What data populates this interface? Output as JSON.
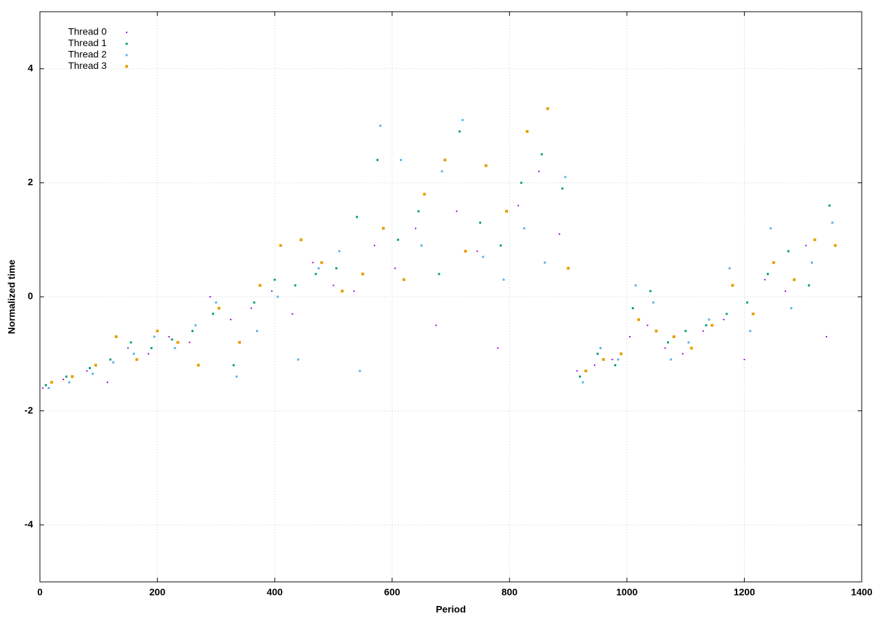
{
  "chart_data": {
    "type": "scatter",
    "x_label": "Period",
    "y_label": "Normalized time",
    "xlim": [
      0,
      1400
    ],
    "ylim": [
      -5,
      5
    ],
    "xticks": [
      0,
      200,
      400,
      600,
      800,
      1000,
      1200,
      1400
    ],
    "yticks": [
      -4,
      -2,
      0,
      2,
      4
    ],
    "grid": true,
    "legend": "upper-left",
    "series": [
      {
        "name": "Thread 0",
        "color": "#9400d3",
        "x": [
          5,
          40,
          80,
          115,
          150,
          185,
          220,
          255,
          290,
          325,
          360,
          395,
          430,
          465,
          500,
          535,
          570,
          605,
          640,
          675,
          710,
          745,
          780,
          815,
          850,
          885,
          915,
          945,
          975,
          1005,
          1035,
          1065,
          1095,
          1130,
          1165,
          1200,
          1235,
          1270,
          1305,
          1340
        ],
        "values": [
          -1.6,
          -1.45,
          -1.3,
          -1.5,
          -0.9,
          -1.0,
          -0.7,
          -0.8,
          0.0,
          -0.4,
          -0.2,
          0.1,
          -0.3,
          0.6,
          0.2,
          0.1,
          0.9,
          0.5,
          1.2,
          -0.5,
          1.5,
          0.8,
          -0.9,
          1.6,
          2.2,
          1.1,
          -1.3,
          -1.2,
          -1.1,
          -0.7,
          -0.5,
          -0.9,
          -1.0,
          -0.6,
          -0.4,
          -1.1,
          0.3,
          0.1,
          0.9,
          -0.7
        ]
      },
      {
        "name": "Thread 1",
        "color": "#009e73",
        "x": [
          10,
          45,
          85,
          120,
          155,
          190,
          225,
          260,
          295,
          330,
          365,
          400,
          435,
          470,
          505,
          540,
          575,
          610,
          645,
          680,
          715,
          750,
          785,
          820,
          855,
          890,
          920,
          950,
          980,
          1010,
          1040,
          1070,
          1100,
          1135,
          1170,
          1205,
          1240,
          1275,
          1310,
          1345
        ],
        "values": [
          -1.55,
          -1.4,
          -1.25,
          -1.1,
          -0.8,
          -0.9,
          -0.75,
          -0.6,
          -0.3,
          -1.2,
          -0.1,
          0.3,
          0.2,
          0.4,
          0.5,
          1.4,
          2.4,
          1.0,
          1.5,
          0.4,
          2.9,
          1.3,
          0.9,
          2.0,
          2.5,
          1.9,
          -1.4,
          -1.0,
          -1.2,
          -0.2,
          0.1,
          -0.8,
          -0.6,
          -0.5,
          -0.3,
          -0.1,
          0.4,
          0.8,
          0.2,
          1.6
        ]
      },
      {
        "name": "Thread 2",
        "color": "#56b4e9",
        "x": [
          15,
          50,
          90,
          125,
          160,
          195,
          230,
          265,
          300,
          335,
          370,
          405,
          440,
          475,
          510,
          545,
          580,
          615,
          650,
          685,
          720,
          755,
          790,
          825,
          860,
          895,
          925,
          955,
          985,
          1015,
          1045,
          1075,
          1105,
          1140,
          1175,
          1210,
          1245,
          1280,
          1315,
          1350
        ],
        "values": [
          -1.6,
          -1.5,
          -1.35,
          -1.15,
          -1.0,
          -0.7,
          -0.9,
          -0.5,
          -0.1,
          -1.4,
          -0.6,
          0.0,
          -1.1,
          0.5,
          0.8,
          -1.3,
          3.0,
          2.4,
          0.9,
          2.2,
          3.1,
          0.7,
          0.3,
          1.2,
          0.6,
          2.1,
          -1.5,
          -0.9,
          -1.1,
          0.2,
          -0.1,
          -1.1,
          -0.8,
          -0.4,
          0.5,
          -0.6,
          1.2,
          -0.2,
          0.6,
          1.3
        ]
      },
      {
        "name": "Thread 3",
        "color": "#e69f00",
        "x": [
          20,
          55,
          95,
          130,
          165,
          200,
          235,
          270,
          305,
          340,
          375,
          410,
          445,
          480,
          515,
          550,
          585,
          620,
          655,
          690,
          725,
          760,
          795,
          830,
          865,
          900,
          930,
          960,
          990,
          1020,
          1050,
          1080,
          1110,
          1145,
          1180,
          1215,
          1250,
          1285,
          1320,
          1355
        ],
        "values": [
          -1.5,
          -1.4,
          -1.2,
          -0.7,
          -1.1,
          -0.6,
          -0.8,
          -1.2,
          -0.2,
          -0.8,
          0.2,
          0.9,
          1.0,
          0.6,
          0.1,
          0.4,
          1.2,
          0.3,
          1.8,
          2.4,
          0.8,
          2.3,
          1.5,
          2.9,
          3.3,
          0.5,
          -1.3,
          -1.1,
          -1.0,
          -0.4,
          -0.6,
          -0.7,
          -0.9,
          -0.5,
          0.2,
          -0.3,
          0.6,
          0.3,
          1.0,
          0.9
        ]
      }
    ]
  }
}
